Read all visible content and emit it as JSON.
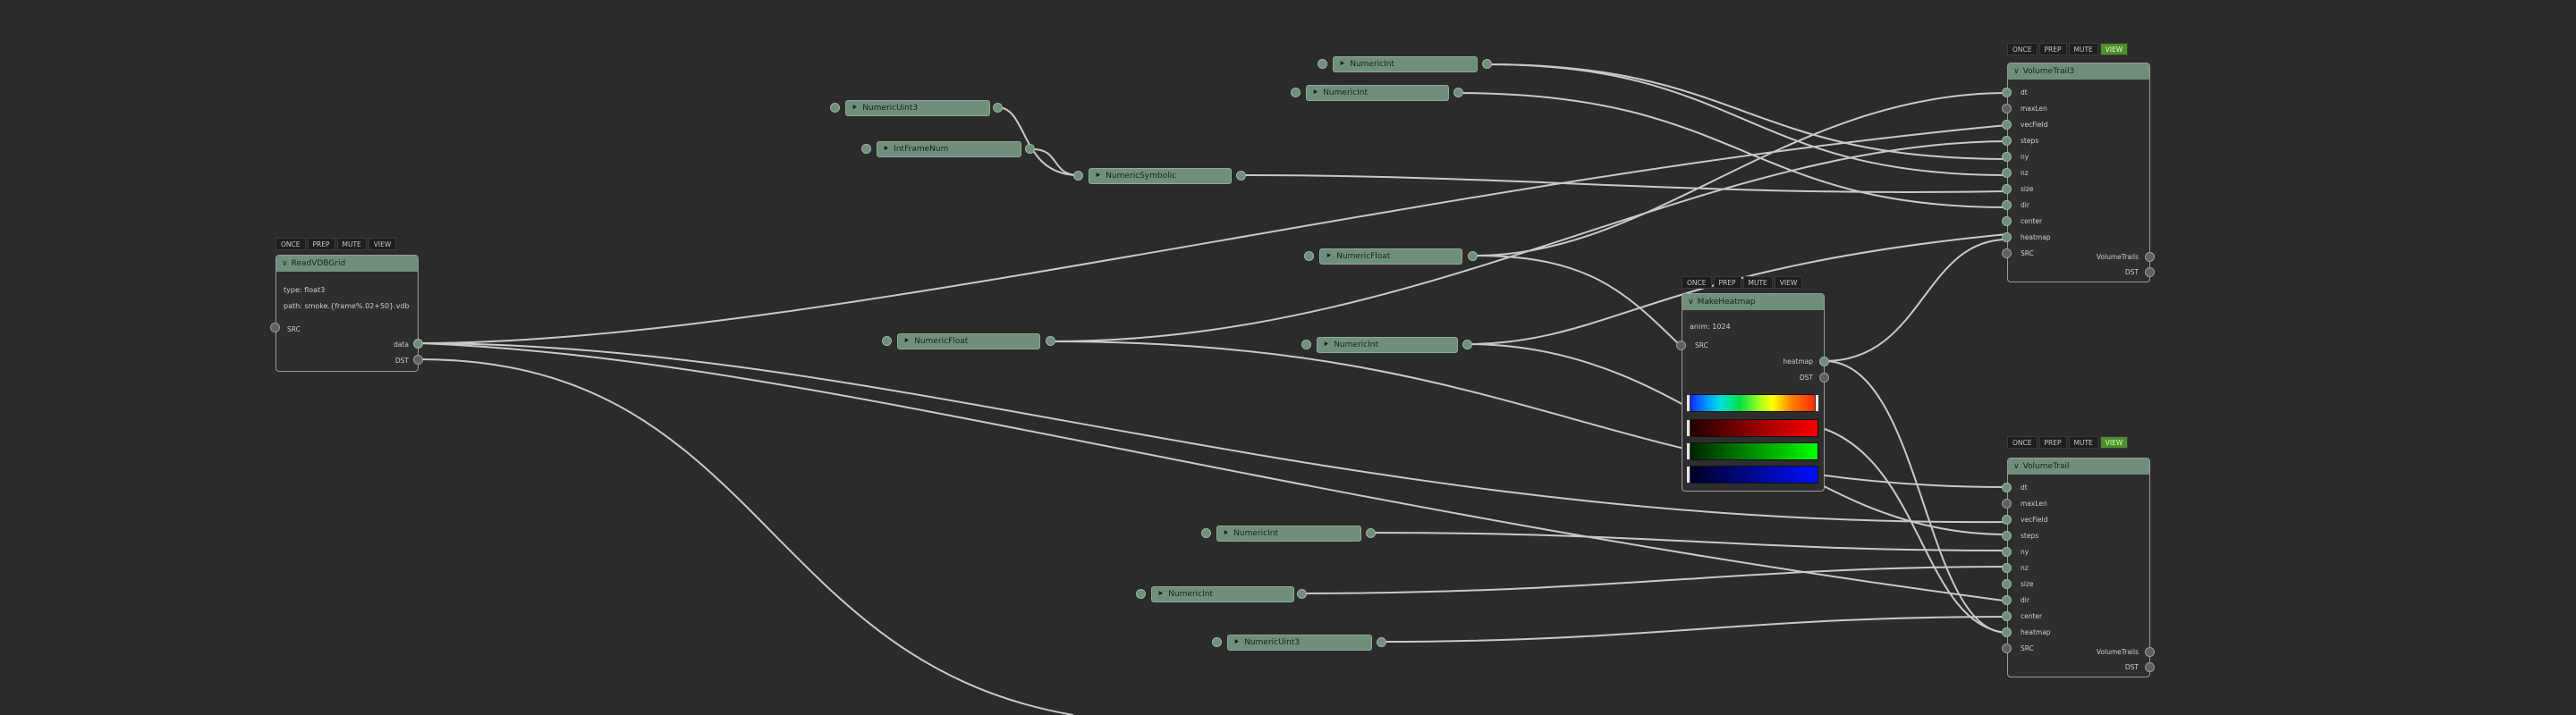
{
  "toolbar_labels": {
    "once": "ONCE",
    "prep": "PREP",
    "mute": "MUTE",
    "view": "VIEW"
  },
  "arrow_glyph": "⯈",
  "chips": {
    "numeric_int_1": "NumericInt",
    "numeric_int_2": "NumericInt",
    "numeric_uint_3": "NumericUint3",
    "int_frame_num": "IntFrameNum",
    "numeric_symbolic": "NumericSymbolic",
    "numeric_float_1": "NumericFloat",
    "numeric_float_2": "NumericFloat",
    "numeric_int_3": "NumericInt",
    "numeric_int_4": "NumericInt",
    "numeric_int_5": "NumericInt",
    "numeric_uint3_2": "NumericUint3"
  },
  "read_node": {
    "title": "ReadVDBGrid",
    "type_label": "type:",
    "type_value": "float3",
    "path_label": "path:",
    "path_value": "smoke.{frame%.02+50}.vdb",
    "src": "SRC",
    "data": "data",
    "dst": "DST"
  },
  "heatmap_node": {
    "title": "MakeHeatmap",
    "anim_label": "anim:",
    "anim_value": "1024",
    "src": "SRC",
    "heatmap": "heatmap",
    "dst": "DST"
  },
  "volume_top": {
    "title": "VolumeTrail3",
    "inputs": [
      "dt",
      "maxLen",
      "vecField",
      "steps",
      "ny",
      "nz",
      "size",
      "dir",
      "center",
      "heatmap",
      "SRC"
    ],
    "out_label": "VolumeTrails",
    "dst": "DST"
  },
  "volume_bottom": {
    "title": "VolumeTrail",
    "inputs": [
      "dt",
      "maxLen",
      "vecField",
      "steps",
      "ny",
      "nz",
      "size",
      "dir",
      "center",
      "heatmap",
      "SRC"
    ],
    "out_label": "VolumeTrails",
    "dst": "DST"
  },
  "colors": {
    "background": "#2b2b2b",
    "node_green": "#6f8f7b",
    "wire": "#c9c9c9",
    "view_active": "#4e8f2c"
  }
}
